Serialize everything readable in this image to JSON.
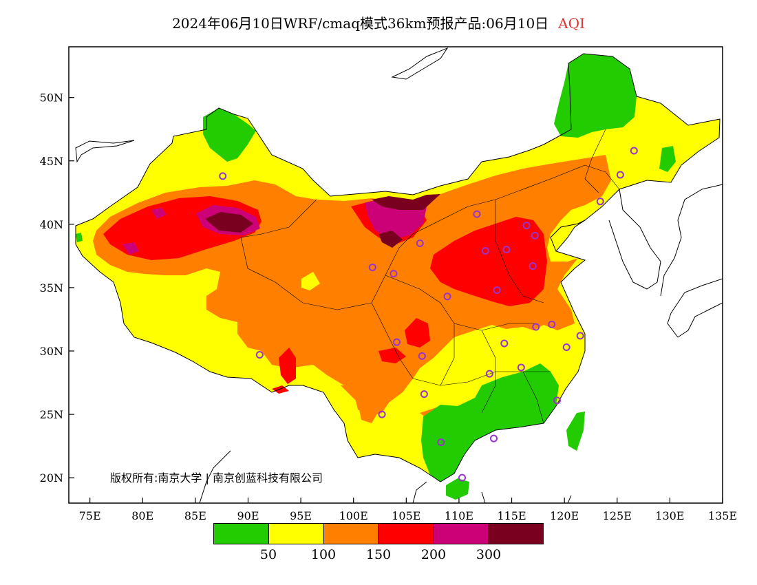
{
  "header": {
    "title": "2024年06月10日WRF/cmaq模式36km预报产品:06月10日",
    "variable": "AQI"
  },
  "axes": {
    "lat_labels": [
      "50N",
      "45N",
      "40N",
      "35N",
      "30N",
      "25N",
      "20N"
    ],
    "lon_labels": [
      "75E",
      "80E",
      "85E",
      "90E",
      "95E",
      "100E",
      "105E",
      "110E",
      "115E",
      "120E",
      "125E",
      "130E",
      "135E"
    ],
    "lon_range": [
      73,
      135
    ],
    "lat_range": [
      18,
      54
    ]
  },
  "legend": {
    "colors": [
      "#22cc00",
      "#ffff00",
      "#ff8000",
      "#ff0000",
      "#cc0077",
      "#7a0020"
    ],
    "labels": [
      "50",
      "100",
      "150",
      "200",
      "300"
    ]
  },
  "copyright": "版权所有:南京大学 | 南京创蓝科技有限公司",
  "colors": {
    "good": "#22cc00",
    "moderate": "#ffff00",
    "usg": "#ff8000",
    "unhealthy": "#ff0000",
    "very_unhealthy": "#cc0077",
    "hazardous": "#7a0020",
    "station_marker": "#9933cc"
  },
  "stations": [
    {
      "lon": 87.6,
      "lat": 43.8
    },
    {
      "lon": 91.1,
      "lat": 29.7
    },
    {
      "lon": 101.8,
      "lat": 36.6
    },
    {
      "lon": 103.8,
      "lat": 36.1
    },
    {
      "lon": 106.3,
      "lat": 38.5
    },
    {
      "lon": 111.7,
      "lat": 40.8
    },
    {
      "lon": 112.5,
      "lat": 37.9
    },
    {
      "lon": 114.5,
      "lat": 38.0
    },
    {
      "lon": 116.4,
      "lat": 39.9
    },
    {
      "lon": 117.2,
      "lat": 39.1
    },
    {
      "lon": 117.0,
      "lat": 36.7
    },
    {
      "lon": 113.6,
      "lat": 34.8
    },
    {
      "lon": 108.9,
      "lat": 34.3
    },
    {
      "lon": 104.1,
      "lat": 30.7
    },
    {
      "lon": 106.5,
      "lat": 29.6
    },
    {
      "lon": 106.7,
      "lat": 26.6
    },
    {
      "lon": 102.7,
      "lat": 25.0
    },
    {
      "lon": 108.3,
      "lat": 22.8
    },
    {
      "lon": 113.3,
      "lat": 23.1
    },
    {
      "lon": 110.3,
      "lat": 20.0
    },
    {
      "lon": 112.9,
      "lat": 28.2
    },
    {
      "lon": 114.3,
      "lat": 30.6
    },
    {
      "lon": 115.9,
      "lat": 28.7
    },
    {
      "lon": 117.3,
      "lat": 31.9
    },
    {
      "lon": 118.8,
      "lat": 32.1
    },
    {
      "lon": 120.2,
      "lat": 30.3
    },
    {
      "lon": 121.5,
      "lat": 31.2
    },
    {
      "lon": 119.3,
      "lat": 26.1
    },
    {
      "lon": 123.4,
      "lat": 41.8
    },
    {
      "lon": 125.3,
      "lat": 43.9
    },
    {
      "lon": 126.6,
      "lat": 45.8
    }
  ]
}
